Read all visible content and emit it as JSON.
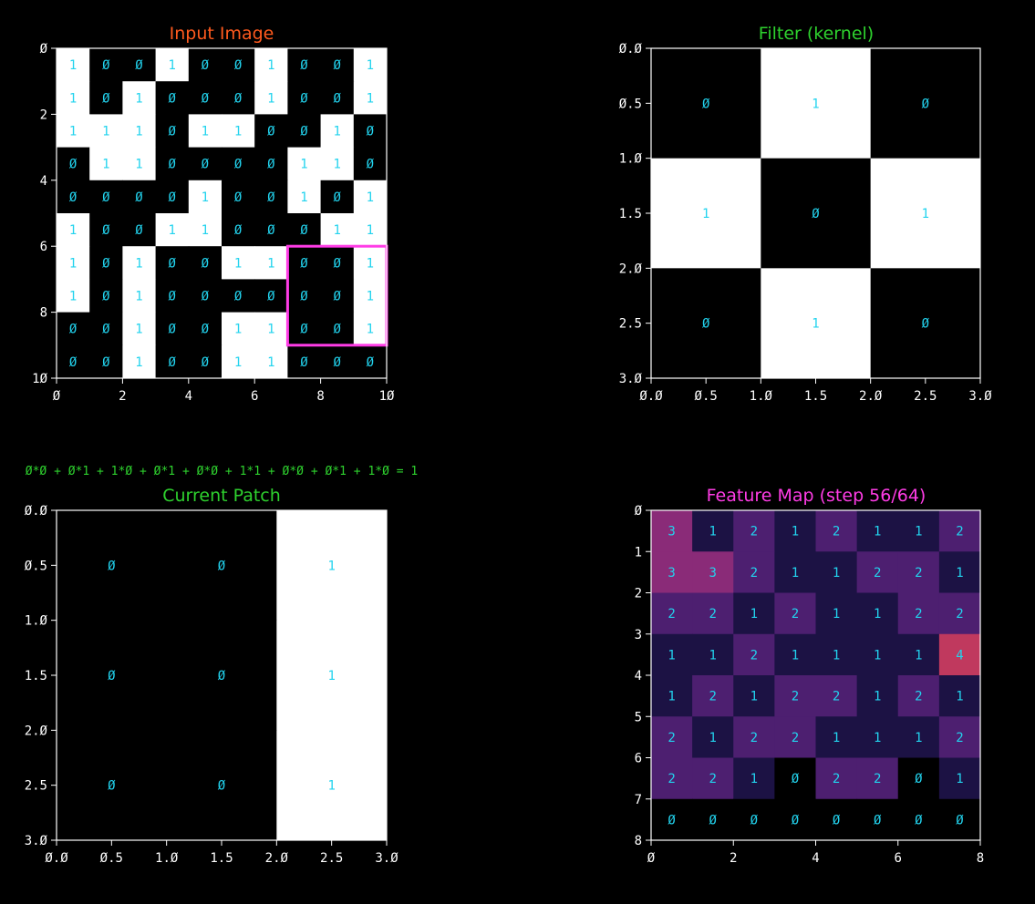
{
  "colors": {
    "background": "#000000",
    "title_input": "#ff5a1e",
    "title_green": "#2ed12e",
    "title_feature": "#ff3ce6",
    "cell_text": "#22d3ee",
    "axis": "#ffffff",
    "highlight": "#ff3ce6",
    "cmap": [
      "#000000",
      "#1c1244",
      "#4d1f70",
      "#8a2b78",
      "#c0395e"
    ]
  },
  "chart_data": [
    {
      "type": "heatmap",
      "name": "input",
      "title": "Input Image",
      "cmap": "binary",
      "xlim": [
        0,
        10
      ],
      "ylim": [
        10,
        0
      ],
      "xticks": [
        "0",
        "2",
        "4",
        "6",
        "8",
        "10"
      ],
      "yticks": [
        "0",
        "2",
        "4",
        "6",
        "8",
        "10"
      ],
      "values": [
        [
          1,
          0,
          0,
          1,
          0,
          0,
          1,
          0,
          0,
          1
        ],
        [
          1,
          0,
          1,
          0,
          0,
          0,
          1,
          0,
          0,
          1
        ],
        [
          1,
          1,
          1,
          0,
          1,
          1,
          0,
          0,
          1,
          0
        ],
        [
          0,
          1,
          1,
          0,
          0,
          0,
          0,
          1,
          1,
          0
        ],
        [
          0,
          0,
          0,
          0,
          1,
          0,
          0,
          1,
          0,
          1
        ],
        [
          1,
          0,
          0,
          1,
          1,
          0,
          0,
          0,
          1,
          1
        ],
        [
          1,
          0,
          1,
          0,
          0,
          1,
          1,
          0,
          0,
          1
        ],
        [
          1,
          0,
          1,
          0,
          0,
          0,
          0,
          0,
          0,
          1
        ],
        [
          0,
          0,
          1,
          0,
          0,
          1,
          1,
          0,
          0,
          1
        ],
        [
          0,
          0,
          1,
          0,
          0,
          1,
          1,
          0,
          0,
          0
        ]
      ],
      "highlight_patch": {
        "row": 6,
        "col": 7,
        "size": 3
      }
    },
    {
      "type": "heatmap",
      "name": "filter",
      "title": "Filter (kernel)",
      "cmap": "binary",
      "xlim": [
        0,
        3
      ],
      "ylim": [
        3,
        0
      ],
      "xticks": [
        "0.0",
        "0.5",
        "1.0",
        "1.5",
        "2.0",
        "2.5",
        "3.0"
      ],
      "yticks": [
        "0.0",
        "0.5",
        "1.0",
        "1.5",
        "2.0",
        "2.5",
        "3.0"
      ],
      "values": [
        [
          0,
          1,
          0
        ],
        [
          1,
          0,
          1
        ],
        [
          0,
          1,
          0
        ]
      ]
    },
    {
      "type": "heatmap",
      "name": "patch",
      "title": "Current Patch",
      "annotation": "0*0 + 0*1 + 1*0 + 0*1 + 0*0 + 1*1 + 0*0 + 0*1 + 1*0 = 1",
      "cmap": "binary",
      "xlim": [
        0,
        3
      ],
      "ylim": [
        3,
        0
      ],
      "xticks": [
        "0.0",
        "0.5",
        "1.0",
        "1.5",
        "2.0",
        "2.5",
        "3.0"
      ],
      "yticks": [
        "0.0",
        "0.5",
        "1.0",
        "1.5",
        "2.0",
        "2.5",
        "3.0"
      ],
      "values": [
        [
          0,
          0,
          1
        ],
        [
          0,
          0,
          1
        ],
        [
          0,
          0,
          1
        ]
      ]
    },
    {
      "type": "heatmap",
      "name": "feature",
      "title": "Feature Map (step 56/64)",
      "cmap": "magma",
      "xlim": [
        0,
        8
      ],
      "ylim": [
        8,
        0
      ],
      "xticks": [
        "0",
        "2",
        "4",
        "6",
        "8"
      ],
      "yticks": [
        "0",
        "1",
        "2",
        "3",
        "4",
        "5",
        "6",
        "7",
        "8"
      ],
      "values": [
        [
          3,
          1,
          2,
          1,
          2,
          1,
          1,
          2
        ],
        [
          3,
          3,
          2,
          1,
          1,
          2,
          2,
          1
        ],
        [
          2,
          2,
          1,
          2,
          1,
          1,
          2,
          2
        ],
        [
          1,
          1,
          2,
          1,
          1,
          1,
          1,
          4
        ],
        [
          1,
          2,
          1,
          2,
          2,
          1,
          2,
          1
        ],
        [
          2,
          1,
          2,
          2,
          1,
          1,
          1,
          2
        ],
        [
          2,
          2,
          1,
          0,
          2,
          2,
          0,
          1
        ],
        [
          0,
          0,
          0,
          0,
          0,
          0,
          0,
          0
        ]
      ]
    }
  ]
}
